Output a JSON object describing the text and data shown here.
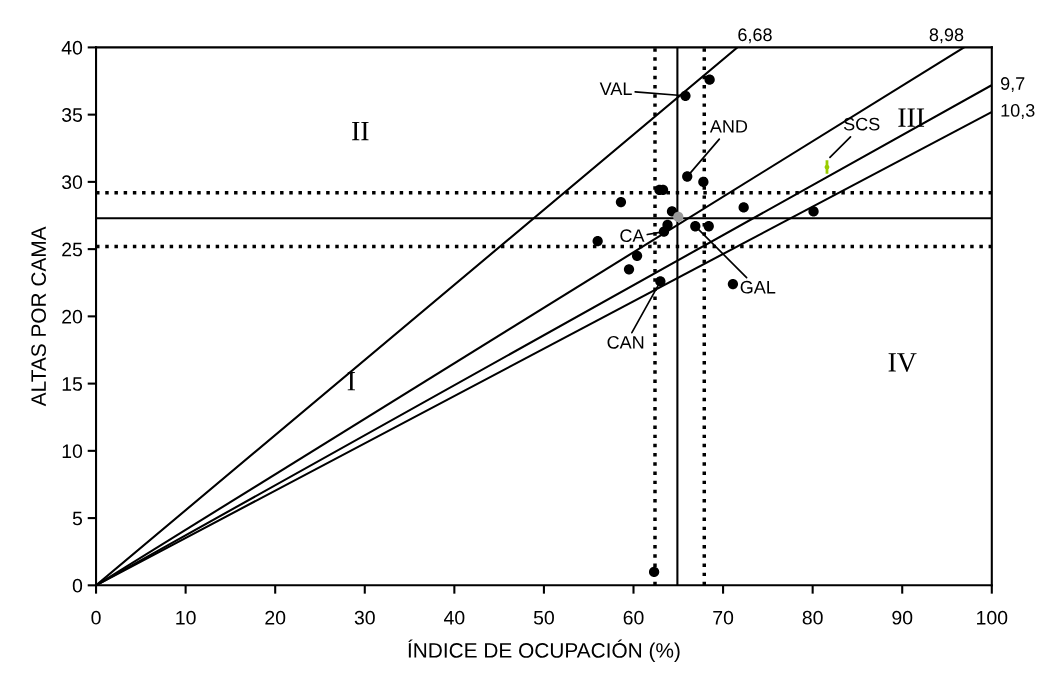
{
  "chart_data": {
    "type": "scatter",
    "xlabel": "ÍNDICE DE OCUPACIÓN (%)",
    "ylabel": "ALTAS POR CAMA",
    "xlim": [
      0,
      100
    ],
    "ylim": [
      0,
      40
    ],
    "xticks": [
      0,
      10,
      20,
      30,
      40,
      50,
      60,
      70,
      80,
      90,
      100
    ],
    "yticks": [
      0,
      5,
      10,
      15,
      20,
      25,
      30,
      35,
      40
    ],
    "grid": false,
    "marker": "circle",
    "series": [
      {
        "color": "#000000",
        "x": [
          65.8,
          68.5,
          66.0,
          67.8,
          62.9,
          63.3,
          58.6,
          64.3,
          63.8,
          63.4,
          66.9,
          68.4,
          72.3,
          80.1,
          56.0,
          60.4,
          59.5,
          63.0,
          71.1,
          62.3
        ],
        "values": [
          36.4,
          37.6,
          30.4,
          30.0,
          29.4,
          29.4,
          28.5,
          27.8,
          26.8,
          26.3,
          26.7,
          26.7,
          28.1,
          27.8,
          25.6,
          24.5,
          23.5,
          22.6,
          22.4,
          1.0
        ]
      },
      {
        "color": "#999999",
        "x": [
          65.0
        ],
        "values": [
          27.4
        ]
      },
      {
        "color": "#99cc00",
        "x": [
          81.6
        ],
        "values": [
          31.1
        ],
        "errors": [
          0.5
        ]
      },
      {
        "type": "line",
        "color": "#000000",
        "marker": "none",
        "x": [
          0,
          71.6
        ],
        "values": [
          0,
          40
        ]
      },
      {
        "type": "line",
        "color": "#000000",
        "marker": "none",
        "x": [
          0,
          96.9
        ],
        "values": [
          0,
          40
        ]
      },
      {
        "type": "line",
        "color": "#000000",
        "marker": "none",
        "x": [
          0,
          100
        ],
        "values": [
          0,
          37.2
        ]
      },
      {
        "type": "line",
        "color": "#000000",
        "marker": "none",
        "x": [
          0,
          100
        ],
        "values": [
          0,
          35.2
        ]
      }
    ],
    "ref_lines": [
      {
        "axis": "x",
        "value": 64.9,
        "line_style": "solid"
      },
      {
        "axis": "x",
        "value": 62.4,
        "line_style": "dotted"
      },
      {
        "axis": "x",
        "value": 67.9,
        "line_style": "dotted"
      },
      {
        "axis": "y",
        "value": 27.3,
        "line_style": "solid"
      },
      {
        "axis": "y",
        "value": 29.2,
        "line_style": "dotted"
      },
      {
        "axis": "y",
        "value": 25.2,
        "line_style": "dotted"
      }
    ],
    "annotations": [
      {
        "text": "6,68",
        "x": 71.6,
        "y": 40
      },
      {
        "text": "8,98",
        "x": 96.9,
        "y": 40
      },
      {
        "text": "9,7",
        "x": 100,
        "y": 37.2
      },
      {
        "text": "10,3",
        "x": 100,
        "y": 35.2
      },
      {
        "text": "VAL",
        "x": 65.8,
        "y": 36.4
      },
      {
        "text": "AND",
        "x": 66.0,
        "y": 30.4
      },
      {
        "text": "CA",
        "x": 63.4,
        "y": 26.3
      },
      {
        "text": "GAL",
        "x": 66.9,
        "y": 26.7
      },
      {
        "text": "CAN",
        "x": 63.0,
        "y": 22.6
      },
      {
        "text": "SCS",
        "x": 81.6,
        "y": 31.6
      },
      "I",
      "II",
      "III",
      "IV"
    ]
  }
}
